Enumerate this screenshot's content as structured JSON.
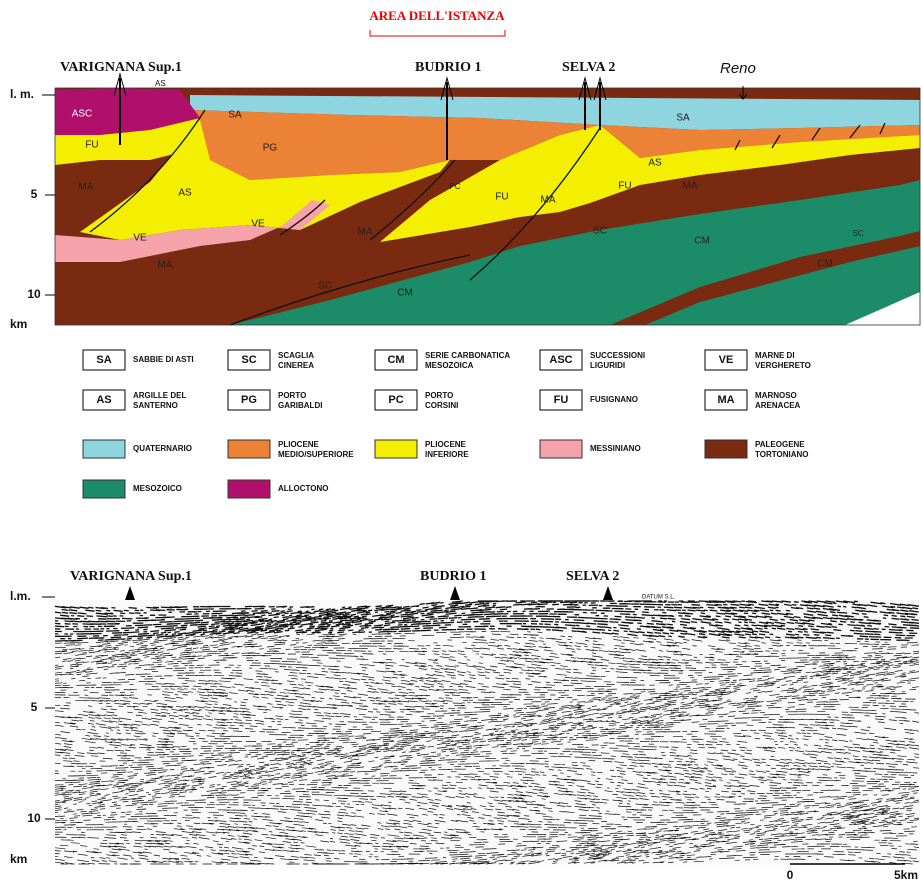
{
  "header": {
    "title": "AREA DELL'ISTANZA"
  },
  "cross_section": {
    "wells": [
      "VARIGNANA Sup.1",
      "BUDRIO 1",
      "SELVA 2"
    ],
    "well_note": "AS",
    "river": "Reno",
    "depth_axis": {
      "top": "l. m.",
      "ticks": [
        5,
        10
      ],
      "unit": "km"
    },
    "unit_labels": [
      "SA",
      "SA",
      "ASC",
      "FU",
      "PG",
      "MA",
      "AS",
      "VE",
      "VE",
      "MA",
      "PC",
      "MA",
      "FU",
      "MA",
      "SC",
      "CM",
      "SC",
      "AS",
      "FU",
      "MA",
      "CM",
      "SC",
      "CM"
    ]
  },
  "legend": {
    "lithology": [
      {
        "code": "SA",
        "label": [
          "SABBIE DI ASTI"
        ]
      },
      {
        "code": "SC",
        "label": [
          "SCAGLIA",
          "CINEREA"
        ]
      },
      {
        "code": "CM",
        "label": [
          "SERIE CARBONATICA",
          "MESOZOICA"
        ]
      },
      {
        "code": "ASC",
        "label": [
          "SUCCESSIONI",
          "LIGURIDI"
        ]
      },
      {
        "code": "VE",
        "label": [
          "MARNE DI",
          "VERGHERETO"
        ]
      },
      {
        "code": "AS",
        "label": [
          "ARGILLE DEL",
          "SANTERNO"
        ]
      },
      {
        "code": "PG",
        "label": [
          "PORTO",
          "GARIBALDI"
        ]
      },
      {
        "code": "PC",
        "label": [
          "PORTO",
          "CORSINI"
        ]
      },
      {
        "code": "FU",
        "label": [
          "FUSIGNANO"
        ]
      },
      {
        "code": "MA",
        "label": [
          "MARNOSO",
          "ARENACEA"
        ]
      }
    ],
    "ages": [
      {
        "label": [
          "QUATERNARIO"
        ]
      },
      {
        "label": [
          "PLIOCENE",
          "MEDIO/SUPERIORE"
        ]
      },
      {
        "label": [
          "PLIOCENE",
          "INFERIORE"
        ]
      },
      {
        "label": [
          "MESSINIANO"
        ]
      },
      {
        "label": [
          "PALEOGENE",
          "TORTONIANO"
        ]
      },
      {
        "label": [
          "MESOZOICO"
        ]
      },
      {
        "label": [
          "ALLOCTONO"
        ]
      }
    ]
  },
  "seismic": {
    "wells": [
      "VARIGNANA Sup.1",
      "BUDRIO 1",
      "SELVA 2"
    ],
    "datum": "DATUM S.L.",
    "depth_axis": {
      "top": "l.m.",
      "ticks": [
        5,
        10
      ],
      "unit": "km"
    },
    "scale": [
      "0",
      "5km"
    ]
  }
}
